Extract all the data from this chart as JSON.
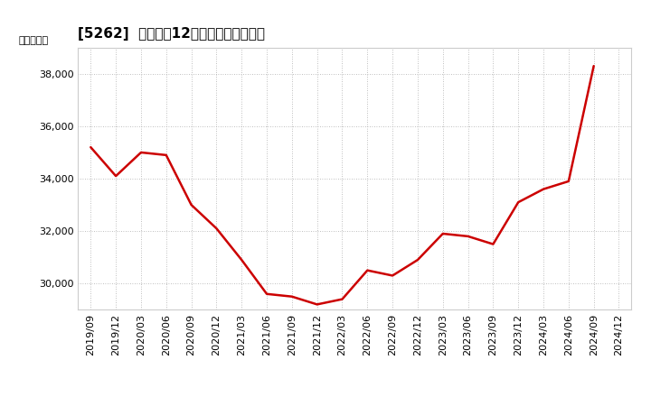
{
  "title": "[5262]  売上高の12か月移動合計の推移",
  "ylabel": "（百万円）",
  "line_color": "#cc0000",
  "background_color": "#ffffff",
  "grid_color": "#aaaaaa",
  "dates": [
    "2019/09",
    "2019/12",
    "2020/03",
    "2020/06",
    "2020/09",
    "2020/12",
    "2021/03",
    "2021/06",
    "2021/09",
    "2021/12",
    "2022/03",
    "2022/06",
    "2022/09",
    "2022/12",
    "2023/03",
    "2023/06",
    "2023/09",
    "2023/12",
    "2024/03",
    "2024/06",
    "2024/09",
    "2024/12"
  ],
  "values": [
    35200,
    34100,
    35000,
    34900,
    33000,
    32100,
    30900,
    29600,
    29500,
    29200,
    29400,
    30500,
    30300,
    30900,
    31900,
    31800,
    31500,
    33100,
    33600,
    33900,
    38300,
    null
  ],
  "yticks": [
    30000,
    32000,
    34000,
    36000,
    38000
  ],
  "ylim": [
    29000,
    39000
  ],
  "xtick_labels": [
    "2019/09",
    "2019/12",
    "2020/03",
    "2020/06",
    "2020/09",
    "2020/12",
    "2021/03",
    "2021/06",
    "2021/09",
    "2021/12",
    "2022/03",
    "2022/06",
    "2022/09",
    "2022/12",
    "2023/03",
    "2023/06",
    "2023/09",
    "2023/12",
    "2024/03",
    "2024/06",
    "2024/09",
    "2024/12"
  ],
  "title_fontsize": 11,
  "tick_fontsize": 8,
  "ylabel_fontsize": 8,
  "linewidth": 1.8
}
